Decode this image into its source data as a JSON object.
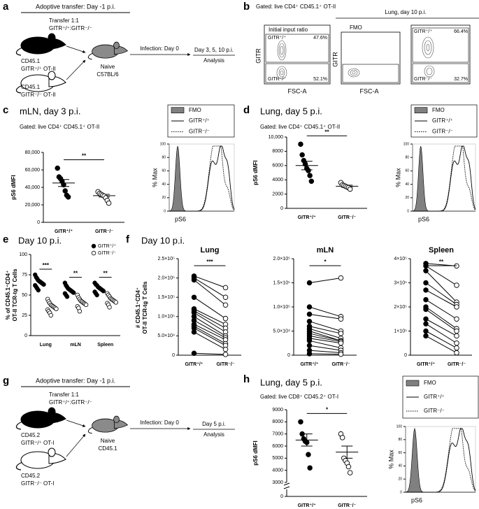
{
  "panels": {
    "a": {
      "letter": "a",
      "header": "Adoptive transfer: Day -1 p.i.",
      "transfer": "Transfer 1:1",
      "ratio": "GITR⁺/⁺:GITR⁻/⁻",
      "donor1": [
        "CD45.1",
        "GITR⁺/⁺ OT-II"
      ],
      "donor2": [
        "CD45.1",
        "GITR⁻/⁻ OT-II"
      ],
      "recipient": [
        "Naive",
        "C57BL/6"
      ],
      "infection": "Infection: Day 0",
      "analysis": [
        "Day 3, 5, 10 p.i.",
        "Analysis"
      ]
    },
    "b": {
      "letter": "b",
      "gate": "Gated: live CD4⁺ CD45.1⁺ OT-II",
      "header": "Lung, day 10 p.i.",
      "y_label": "GITR",
      "x_label": "FSC-A",
      "plots": [
        {
          "title": "Initial input ratio",
          "top_label": "GITR⁺/⁺",
          "top_pct": "47.6%",
          "bottom_label": "GITR⁻/⁻",
          "bottom_pct": "52.1%"
        },
        {
          "title": "FMO"
        },
        {
          "top_label": "GITR⁺/⁺",
          "top_pct": "66.4%",
          "bottom_label": "GITR⁻/⁻",
          "bottom_pct": "32.7%"
        }
      ]
    },
    "c": {
      "letter": "c",
      "title": "mLN, day 3 p.i.",
      "subtitle": "Gated: live CD4⁺ CD45.1⁺ OT-II"
    },
    "d": {
      "letter": "d",
      "title": "Lung, day 5 p.i.",
      "subtitle": "Gated: live CD4⁺ CD45.1⁺ OT-II"
    },
    "e": {
      "letter": "e",
      "title": "Day 10 p.i."
    },
    "f": {
      "letter": "f",
      "title": "Day 10 p.i.",
      "y_label": [
        "# CD45.1⁺CD4⁺",
        "OT-II TCR-tg T Cells"
      ]
    },
    "g": {
      "letter": "g",
      "header": "Adoptive transfer: Day -1 p.i.",
      "transfer": "Transfer 1:1",
      "ratio": "GITR⁺/⁺:GITR⁻/⁻",
      "donor1": [
        "CD45.2",
        "GITR⁺/⁺ OT-I"
      ],
      "donor2": [
        "CD45.2",
        "GITR⁻/⁻ OT-I"
      ],
      "recipient": [
        "Naive",
        "CD45.1"
      ],
      "infection": "Infection: Day 0",
      "analysis": [
        "Day 5 p.i.",
        "Analysis"
      ]
    },
    "h": {
      "letter": "h",
      "title": "Lung, day 5 p.i.",
      "subtitle": "Gated: live CD8⁺ CD45.2⁺ OT-I"
    }
  },
  "chart_data": [
    {
      "type": "dot",
      "y_label": "pS6 dMFI",
      "categories": [
        "GITR⁺/⁺",
        "GITR⁻/⁻"
      ],
      "colors": [
        "#000000",
        "#ffffff"
      ],
      "values": [
        [
          62000,
          52000,
          50000,
          47000,
          43000,
          36000,
          31000,
          29000
        ],
        [
          35000,
          33000,
          32000,
          31000,
          30000,
          28000,
          25000,
          22000
        ]
      ],
      "means": [
        45000,
        30500
      ],
      "errors": [
        4000,
        1500
      ],
      "significance": "**",
      "ylim": [
        0,
        80000
      ],
      "yticks": [
        0,
        {
          "value": 20000,
          "label": "20,000"
        },
        {
          "value": 40000,
          "label": "40,000"
        },
        {
          "value": 60000,
          "label": "60,000"
        },
        {
          "value": 80000,
          "label": "80,000"
        }
      ]
    },
    {
      "type": "flow-histogram",
      "y_label": "% Max",
      "x_label": "pS6",
      "series": [
        {
          "name": "FMO",
          "color": "#808080",
          "style": "filled"
        },
        {
          "name": "GITR⁺/⁺",
          "color": "#000000",
          "style": "solid"
        },
        {
          "name": "GITR⁻/⁻",
          "color": "#000000",
          "style": "dotted"
        }
      ],
      "ylim": [
        0,
        100
      ],
      "yticks": [
        0,
        20,
        40,
        60,
        80,
        100
      ]
    },
    {
      "type": "dot",
      "y_label": "pS6 dMFI",
      "categories": [
        "GITR⁺/⁺",
        "GITR⁻/⁻"
      ],
      "colors": [
        "#000000",
        "#ffffff"
      ],
      "values": [
        [
          9000,
          7500,
          6700,
          6200,
          5600,
          5300,
          4600,
          3800
        ],
        [
          3600,
          3300,
          3200,
          3100,
          3000,
          2900,
          2700
        ]
      ],
      "means": [
        6000,
        3100
      ],
      "errors": [
        600,
        150
      ],
      "significance": "**",
      "ylim": [
        0,
        10000
      ],
      "yticks": [
        0,
        2000,
        4000,
        6000,
        8000,
        {
          "value": 10000,
          "label": "10,000"
        }
      ]
    },
    {
      "type": "flow-histogram",
      "y_label": "% Max",
      "x_label": "pS6",
      "series": [
        {
          "name": "FMO",
          "color": "#808080",
          "style": "filled"
        },
        {
          "name": "GITR⁺/⁺",
          "color": "#000000",
          "style": "solid"
        },
        {
          "name": "GITR⁻/⁻",
          "color": "#000000",
          "style": "dotted"
        }
      ],
      "ylim": [
        0,
        100
      ],
      "yticks": [
        0,
        20,
        40,
        60,
        80,
        100
      ]
    },
    {
      "type": "grouped-dot",
      "y_label": [
        "% of CD45.1⁺CD4⁺",
        "OT-II TCR-tg T Cells"
      ],
      "categories": [
        "Lung",
        "mLN",
        "Spleen"
      ],
      "series": [
        {
          "name": "GITR⁺/⁺",
          "color": "#000000",
          "values": [
            [
              75,
              72,
              70,
              68,
              67,
              66,
              65,
              64,
              63,
              62,
              60,
              58,
              56
            ],
            [
              65,
              62,
              60,
              58,
              57,
              56,
              55,
              54,
              53,
              52,
              50,
              48
            ],
            [
              65,
              63,
              62,
              60,
              59,
              58,
              57,
              56,
              55,
              54,
              52,
              50
            ]
          ]
        },
        {
          "name": "GITR⁻/⁻",
          "color": "#ffffff",
          "values": [
            [
              45,
              42,
              40,
              38,
              37,
              36,
              35,
              34,
              33,
              32,
              30,
              28,
              25
            ],
            [
              50,
              47,
              45,
              43,
              42,
              41,
              40,
              39,
              38,
              36,
              34,
              30
            ],
            [
              52,
              50,
              48,
              46,
              45,
              44,
              43,
              42,
              41,
              40,
              38,
              35
            ]
          ]
        }
      ],
      "significance": [
        "***",
        "**",
        "**"
      ],
      "ylim": [
        0,
        100
      ],
      "yticks": [
        0,
        25,
        50,
        75,
        100
      ]
    },
    {
      "type": "paired",
      "title": "Lung",
      "categories": [
        "GITR⁺/⁺",
        "GITR⁻/⁻"
      ],
      "colors": [
        "#000000",
        "#ffffff"
      ],
      "values": [
        [
          205000,
          200000,
          195000,
          150000,
          120000,
          115000,
          110000,
          100000,
          90000,
          80000,
          75000,
          70000,
          60000,
          5000
        ],
        [
          175000,
          150000,
          130000,
          95000,
          80000,
          70000,
          60000,
          50000,
          45000,
          40000,
          30000,
          25000,
          15000,
          2000
        ]
      ],
      "significance": "***",
      "ylim": [
        0,
        250000
      ],
      "yticks": [
        0,
        {
          "value": 50000,
          "label": "5.0×10⁴"
        },
        {
          "value": 100000,
          "label": "1.0×10⁵"
        },
        {
          "value": 150000,
          "label": "1.5×10⁵"
        },
        {
          "value": 200000,
          "label": "2.0×10⁵"
        },
        {
          "value": 250000,
          "label": "2.5×10⁵"
        }
      ]
    },
    {
      "type": "paired",
      "title": "mLN",
      "categories": [
        "GITR⁺/⁺",
        "GITR⁻/⁻"
      ],
      "colors": [
        "#000000",
        "#ffffff"
      ],
      "values": [
        [
          150000,
          100000,
          85000,
          70000,
          60000,
          55000,
          50000,
          45000,
          40000,
          35000,
          30000,
          20000,
          10000,
          3000
        ],
        [
          160000,
          80000,
          75000,
          50000,
          45000,
          35000,
          30000,
          30000,
          28000,
          25000,
          15000,
          10000,
          5000,
          2000
        ]
      ],
      "significance": "*",
      "ylim": [
        0,
        200000
      ],
      "yticks": [
        0,
        {
          "value": 50000,
          "label": "5.0×10⁴"
        },
        {
          "value": 100000,
          "label": "1.0×10⁵"
        },
        {
          "value": 150000,
          "label": "1.5×10⁵"
        },
        {
          "value": 200000,
          "label": "2.0×10⁵"
        }
      ]
    },
    {
      "type": "paired",
      "title": "Spleen",
      "categories": [
        "GITR⁺/⁺",
        "GITR⁻/⁻"
      ],
      "colors": [
        "#000000",
        "#ffffff"
      ],
      "values": [
        [
          380000,
          370000,
          350000,
          300000,
          270000,
          230000,
          200000,
          190000,
          150000,
          130000,
          100000,
          80000
        ],
        [
          370000,
          290000,
          220000,
          210000,
          200000,
          150000,
          110000,
          100000,
          80000,
          50000,
          30000,
          10000
        ]
      ],
      "significance": "**",
      "ylim": [
        0,
        400000
      ],
      "yticks": [
        0,
        {
          "value": 100000,
          "label": "1×10⁵"
        },
        {
          "value": 200000,
          "label": "2×10⁵"
        },
        {
          "value": 300000,
          "label": "3×10⁵"
        },
        {
          "value": 400000,
          "label": "4×10⁵"
        }
      ]
    },
    {
      "type": "dot",
      "y_label": "pS6 dMFI",
      "categories": [
        "GITR⁺/⁺",
        "GITR⁻/⁻"
      ],
      "colors": [
        "#000000",
        "#ffffff"
      ],
      "values": [
        [
          8000,
          7000,
          6600,
          6400,
          6300,
          5300,
          4200
        ],
        [
          7000,
          6700,
          5000,
          4800,
          4600,
          4300,
          3800
        ]
      ],
      "means": [
        6500,
        5500
      ],
      "errors": [
        500,
        500
      ],
      "significance": "*",
      "axis_break": true,
      "ylim": [
        3000,
        9000
      ],
      "yticks": [
        0,
        3000,
        4000,
        5000,
        6000,
        7000,
        8000,
        9000
      ]
    },
    {
      "type": "flow-histogram",
      "y_label": "% Max",
      "x_label": "pS6",
      "series": [
        {
          "name": "FMO",
          "color": "#808080",
          "style": "filled"
        },
        {
          "name": "GITR⁺/⁺",
          "color": "#000000",
          "style": "solid"
        },
        {
          "name": "GITR⁻/⁻",
          "color": "#000000",
          "style": "dotted"
        }
      ],
      "ylim": [
        0,
        100
      ],
      "yticks": [
        0,
        20,
        40,
        60,
        80,
        100
      ]
    }
  ]
}
